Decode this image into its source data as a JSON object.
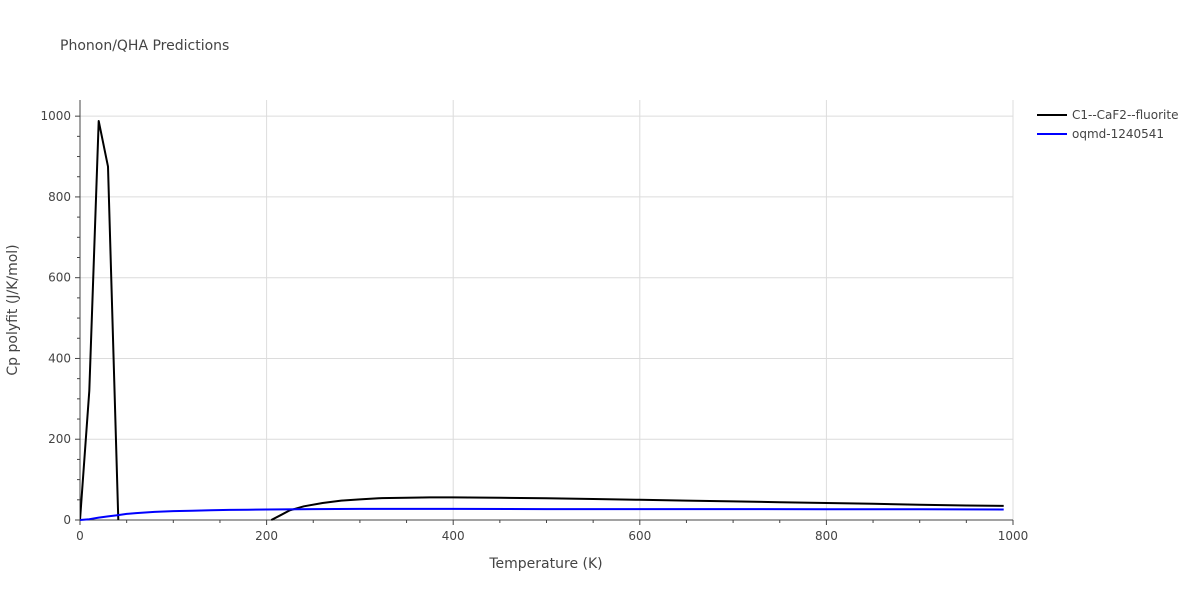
{
  "chart_data": {
    "type": "line",
    "title": "Phonon/QHA Predictions",
    "xlabel": "Temperature (K)",
    "ylabel": "Cp polyfit (J/K/mol)",
    "xlim": [
      0,
      1000
    ],
    "ylim": [
      0,
      1040
    ],
    "xticks": [
      0,
      200,
      400,
      600,
      800,
      1000
    ],
    "yticks": [
      0,
      200,
      400,
      600,
      800,
      1000
    ],
    "grid": true,
    "legend_position": "top-right",
    "series": [
      {
        "name": "C1--CaF2--fluorite",
        "color": "#000000",
        "segments": [
          {
            "x": [
              0,
              10,
              20,
              30,
              41
            ],
            "y": [
              0,
              320,
              988,
              875,
              0
            ]
          },
          {
            "x": [
              205,
              215,
              225,
              240,
              260,
              280,
              300,
              320,
              350,
              375,
              400,
              450,
              500,
              550,
              600,
              650,
              700,
              750,
              800,
              850,
              900,
              950,
              990
            ],
            "y": [
              0,
              12,
              24,
              34,
              42,
              48,
              51,
              54,
              55,
              56,
              56,
              55,
              54,
              52,
              50,
              48,
              46,
              44,
              42,
              40,
              38,
              36,
              35
            ]
          }
        ]
      },
      {
        "name": "oqmd-1240541",
        "color": "#0000ff",
        "segments": [
          {
            "x": [
              0,
              10,
              20,
              30,
              40,
              50,
              60,
              80,
              100,
              120,
              140,
              160,
              180,
              200,
              250,
              300,
              400,
              500,
              600,
              700,
              800,
              900,
              990
            ],
            "y": [
              0,
              2,
              6,
              9,
              12,
              15,
              17,
              20,
              22,
              23,
              24,
              25,
              25.5,
              26,
              27,
              27.5,
              27.5,
              27,
              27,
              27,
              26.5,
              26.5,
              26
            ]
          }
        ]
      }
    ]
  }
}
